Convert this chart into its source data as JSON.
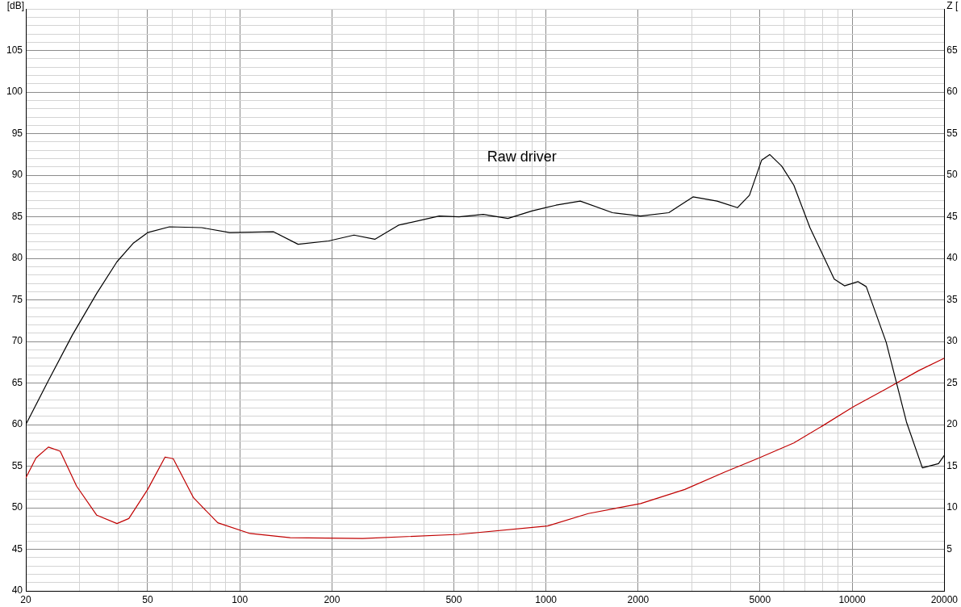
{
  "chart_data": {
    "type": "line",
    "ylabel": "[dB]",
    "y2label": "Z [",
    "annotations": [
      "Raw driver"
    ],
    "log": "x",
    "grid": true,
    "legend": false,
    "marker": "none",
    "line_style": "solid",
    "xlim": [
      20,
      20000
    ],
    "ylim": [
      40,
      110
    ],
    "y2lim": [
      0,
      70
    ],
    "xticks": [
      20,
      {
        "value": 30,
        "label": null
      },
      {
        "value": 40,
        "label": null
      },
      50,
      {
        "value": 60,
        "label": null
      },
      {
        "value": 70,
        "label": null
      },
      {
        "value": 80,
        "label": null
      },
      {
        "value": 90,
        "label": null
      },
      100,
      200,
      {
        "value": 300,
        "label": null
      },
      {
        "value": 400,
        "label": null
      },
      500,
      {
        "value": 600,
        "label": null
      },
      {
        "value": 700,
        "label": null
      },
      {
        "value": 800,
        "label": null
      },
      {
        "value": 900,
        "label": null
      },
      1000,
      2000,
      {
        "value": 3000,
        "label": null
      },
      {
        "value": 4000,
        "label": null
      },
      5000,
      {
        "value": 6000,
        "label": null
      },
      {
        "value": 7000,
        "label": null
      },
      {
        "value": 8000,
        "label": null
      },
      {
        "value": 9000,
        "label": null
      },
      10000,
      20000
    ],
    "yticks": [
      40,
      {
        "value": 41,
        "label": null
      },
      {
        "value": 42,
        "label": null
      },
      {
        "value": 43,
        "label": null
      },
      {
        "value": 44,
        "label": null
      },
      45,
      {
        "value": 46,
        "label": null
      },
      {
        "value": 47,
        "label": null
      },
      {
        "value": 48,
        "label": null
      },
      {
        "value": 49,
        "label": null
      },
      50,
      {
        "value": 51,
        "label": null
      },
      {
        "value": 52,
        "label": null
      },
      {
        "value": 53,
        "label": null
      },
      {
        "value": 54,
        "label": null
      },
      55,
      {
        "value": 56,
        "label": null
      },
      {
        "value": 57,
        "label": null
      },
      {
        "value": 58,
        "label": null
      },
      {
        "value": 59,
        "label": null
      },
      60,
      {
        "value": 61,
        "label": null
      },
      {
        "value": 62,
        "label": null
      },
      {
        "value": 63,
        "label": null
      },
      {
        "value": 64,
        "label": null
      },
      65,
      {
        "value": 66,
        "label": null
      },
      {
        "value": 67,
        "label": null
      },
      {
        "value": 68,
        "label": null
      },
      {
        "value": 69,
        "label": null
      },
      70,
      {
        "value": 71,
        "label": null
      },
      {
        "value": 72,
        "label": null
      },
      {
        "value": 73,
        "label": null
      },
      {
        "value": 74,
        "label": null
      },
      75,
      {
        "value": 76,
        "label": null
      },
      {
        "value": 77,
        "label": null
      },
      {
        "value": 78,
        "label": null
      },
      {
        "value": 79,
        "label": null
      },
      80,
      {
        "value": 81,
        "label": null
      },
      {
        "value": 82,
        "label": null
      },
      {
        "value": 83,
        "label": null
      },
      {
        "value": 84,
        "label": null
      },
      85,
      {
        "value": 86,
        "label": null
      },
      {
        "value": 87,
        "label": null
      },
      {
        "value": 88,
        "label": null
      },
      {
        "value": 89,
        "label": null
      },
      90,
      {
        "value": 91,
        "label": null
      },
      {
        "value": 92,
        "label": null
      },
      {
        "value": 93,
        "label": null
      },
      {
        "value": 94,
        "label": null
      },
      95,
      {
        "value": 96,
        "label": null
      },
      {
        "value": 97,
        "label": null
      },
      {
        "value": 98,
        "label": null
      },
      {
        "value": 99,
        "label": null
      },
      100,
      {
        "value": 101,
        "label": null
      },
      {
        "value": 102,
        "label": null
      },
      {
        "value": 103,
        "label": null
      },
      {
        "value": 104,
        "label": null
      },
      105,
      {
        "value": 106,
        "label": null
      },
      {
        "value": 107,
        "label": null
      },
      {
        "value": 108,
        "label": null
      },
      {
        "value": 109,
        "label": null
      },
      {
        "value": 110,
        "label": null
      }
    ],
    "y2ticks": [
      5,
      10,
      15,
      20,
      25,
      30,
      35,
      40,
      45,
      50,
      55,
      60,
      65
    ],
    "series": [
      {
        "color": "#000000",
        "x": [
          20,
          23.7,
          28.4,
          34.1,
          39.7,
          44.8,
          50,
          58.9,
          75,
          92.6,
          129,
          155,
          195,
          236,
          276,
          330,
          448,
          520,
          624,
          751,
          899,
          1078,
          1294,
          1649,
          2037,
          2518,
          3022,
          3620,
          4220,
          4620,
          5060,
          5380,
          5890,
          6450,
          7280,
          8740,
          9440,
          10460,
          11120,
          12920,
          15050,
          16960,
          19140,
          20000
        ],
        "values": [
          60.0,
          65.3,
          70.8,
          75.8,
          79.6,
          81.8,
          83.1,
          83.8,
          83.7,
          83.1,
          83.2,
          81.7,
          82.1,
          82.8,
          82.3,
          84.0,
          85.1,
          85.0,
          85.3,
          84.8,
          85.7,
          86.4,
          86.9,
          85.5,
          85.1,
          85.5,
          87.4,
          86.9,
          86.1,
          87.6,
          91.8,
          92.5,
          91.1,
          88.8,
          83.7,
          77.5,
          76.7,
          77.2,
          76.6,
          69.9,
          60.3,
          54.8,
          55.3,
          56.3
        ]
      },
      {
        "color": "#c00000",
        "axis": "y2",
        "x": [
          20,
          21.6,
          23.7,
          25.9,
          29.3,
          34.1,
          39.7,
          43.4,
          50,
          57,
          60.6,
          70.6,
          84.7,
          108,
          146,
          252,
          520,
          1012,
          1374,
          2037,
          2840,
          3840,
          4900,
          6450,
          7960,
          10140,
          12920,
          16500,
          20000
        ],
        "values": [
          13.6,
          16.0,
          17.3,
          16.8,
          12.6,
          9.1,
          8.1,
          8.7,
          12.2,
          16.1,
          15.9,
          11.2,
          8.2,
          6.9,
          6.4,
          6.3,
          6.8,
          7.8,
          9.3,
          10.5,
          12.2,
          14.3,
          15.9,
          17.8,
          19.8,
          22.2,
          24.3,
          26.5,
          28.0
        ]
      }
    ]
  }
}
